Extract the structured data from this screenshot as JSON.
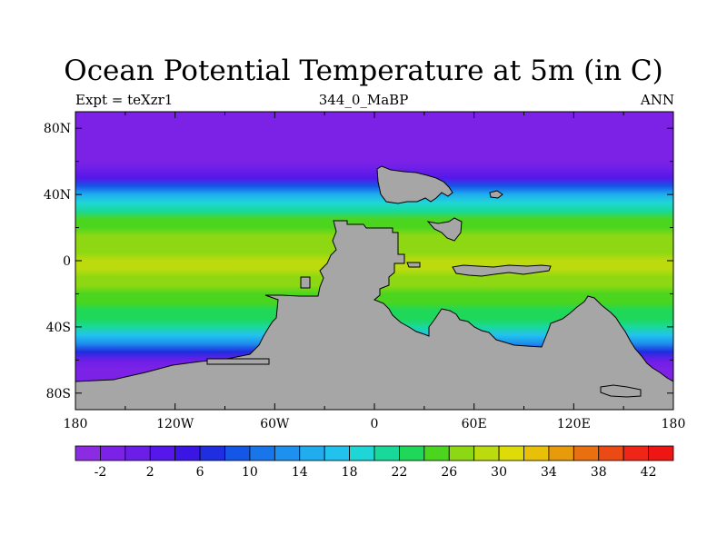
{
  "title": "Ocean Potential Temperature at 5m (in C)",
  "subtitle_left": "Expt = teXzr1",
  "subtitle_center": "344_0_MaBP",
  "subtitle_right": "ANN",
  "colors": {
    "land": "#a6a6a6",
    "palette": [
      "#8b2be2",
      "#7b22e6",
      "#6a1ee8",
      "#5517ea",
      "#3b15e4",
      "#1f2ee0",
      "#1457e6",
      "#1976ea",
      "#1e90ee",
      "#1fadf0",
      "#22c2ef",
      "#1fd6d6",
      "#19d99a",
      "#1fd85a",
      "#4cd51e",
      "#8dd813",
      "#bcdb0e",
      "#dddc08",
      "#e8c008",
      "#e79a0a",
      "#e97010",
      "#ec4a14",
      "#ef2617",
      "#ee1515"
    ]
  },
  "chart_data": {
    "type": "heatmap",
    "title": "Ocean Potential Temperature at 5m (in C)",
    "variable": "Ocean potential temperature (C)",
    "x_ticks": [
      "180",
      "120W",
      "60W",
      "0",
      "60E",
      "120E",
      "180"
    ],
    "x_tick_values": [
      -180,
      -120,
      -60,
      0,
      60,
      120,
      180
    ],
    "y_ticks": [
      "80N",
      "40N",
      "0",
      "40S",
      "80S"
    ],
    "y_tick_values": [
      80,
      40,
      0,
      -40,
      -80
    ],
    "xlim": [
      -180,
      180
    ],
    "ylim": [
      -90,
      90
    ],
    "colorbar": {
      "levels": [
        -4,
        -2,
        0,
        2,
        4,
        6,
        8,
        10,
        12,
        14,
        16,
        18,
        20,
        22,
        24,
        26,
        28,
        30,
        32,
        34,
        36,
        38,
        40,
        42,
        44
      ],
      "labels": [
        "-2",
        "2",
        "6",
        "10",
        "14",
        "18",
        "22",
        "26",
        "30",
        "34",
        "38",
        "42"
      ],
      "label_values": [
        -2,
        2,
        6,
        10,
        14,
        18,
        22,
        26,
        30,
        34,
        38,
        42
      ]
    },
    "zonal_profile": {
      "lat": [
        90,
        80,
        70,
        60,
        55,
        50,
        45,
        40,
        35,
        30,
        25,
        20,
        15,
        10,
        5,
        0,
        -5,
        -10,
        -15,
        -20,
        -25,
        -30,
        -35,
        -40,
        -45,
        -50,
        -55,
        -60,
        -65,
        -70,
        -75,
        -80,
        -85,
        -90
      ],
      "temp": [
        -2,
        -1.8,
        -1.5,
        -1,
        0,
        2,
        9,
        14,
        18,
        21,
        24,
        25.5,
        26.5,
        27,
        27.5,
        28,
        28,
        27,
        26,
        25,
        24,
        23,
        22,
        20,
        17,
        12,
        6,
        0,
        -1,
        -1.5,
        -1.8,
        -1.8,
        -1.8,
        -1.8
      ]
    }
  }
}
